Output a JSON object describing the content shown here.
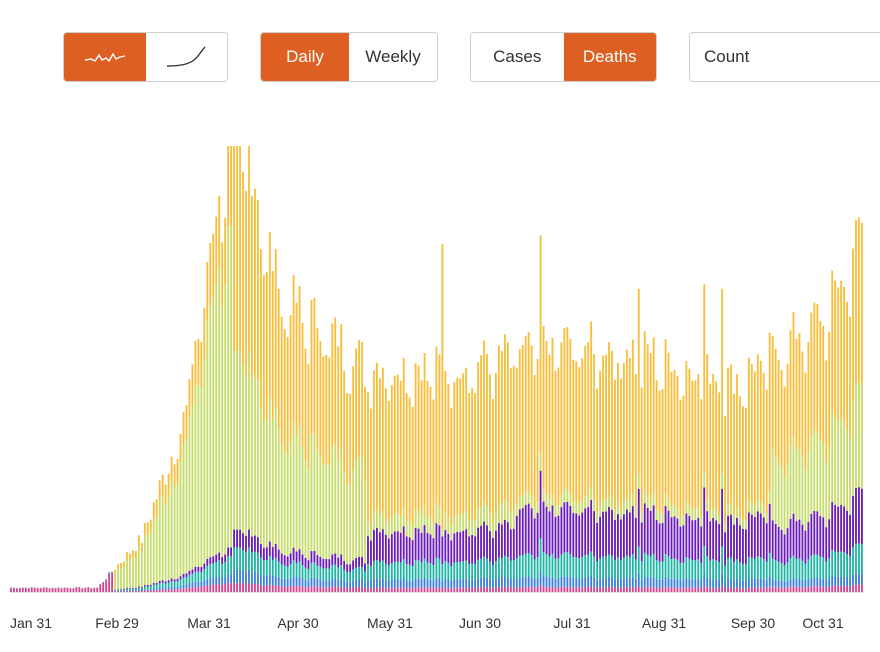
{
  "toolbar": {
    "chart_type": [
      {
        "icon": "daily-sparkline-icon",
        "active": true
      },
      {
        "icon": "cumulative-curve-icon",
        "active": false
      }
    ],
    "period": [
      {
        "label": "Daily",
        "active": true
      },
      {
        "label": "Weekly",
        "active": false
      }
    ],
    "metric": [
      {
        "label": "Cases",
        "active": false
      },
      {
        "label": "Deaths",
        "active": true
      }
    ],
    "scale_select": {
      "value": "Count"
    }
  },
  "colors": {
    "accent": "#dd6022",
    "layers": [
      "#d6448f",
      "#3a7fd8",
      "#1fb5a4",
      "#6a1bb8",
      "#c6dc6c",
      "#f7be3c"
    ]
  },
  "chart_data": {
    "type": "bar",
    "stacked": true,
    "x_range": [
      "Jan 31",
      "Nov 12"
    ],
    "x_ticks": [
      "Jan 31",
      "Feb 29",
      "Mar 31",
      "Apr 30",
      "May 31",
      "Jun 30",
      "Jul 31",
      "Aug 31",
      "Sep 30",
      "Oct 31"
    ],
    "series": [
      {
        "color": "#d6448f",
        "approx_peak_share": 0.02
      },
      {
        "color": "#3a7fd8",
        "approx_peak_share": 0.03
      },
      {
        "color": "#1fb5a4",
        "approx_peak_share": 0.08
      },
      {
        "color": "#6a1bb8",
        "approx_peak_share": 0.17
      },
      {
        "color": "#c6dc6c",
        "approx_peak_share": 0.38
      },
      {
        "color": "#f7be3c",
        "approx_peak_share": 0.32
      }
    ],
    "daily_totals_relative": {
      "note_shape": "rise from early March, peak mid-April, trough June, plateau Jul-Oct, rise late Oct",
      "key_points": [
        [
          "Jan 31",
          0.01
        ],
        [
          "Feb 29",
          0.01
        ],
        [
          "Mar 15",
          0.12
        ],
        [
          "Mar 31",
          0.42
        ],
        [
          "Apr 15",
          1.0
        ],
        [
          "Apr 30",
          0.6
        ],
        [
          "May 31",
          0.45
        ],
        [
          "Jun 30",
          0.45
        ],
        [
          "Jul 31",
          0.5
        ],
        [
          "Aug 31",
          0.48
        ],
        [
          "Sep 30",
          0.42
        ],
        [
          "Oct 31",
          0.56
        ],
        [
          "Nov 12",
          0.72
        ]
      ],
      "spikes": [
        [
          "Apr 14",
          1.0
        ],
        [
          "Jun 24",
          0.78
        ],
        [
          "Jul 27",
          0.8
        ],
        [
          "Apr 30",
          0.68
        ],
        [
          "Aug 31",
          0.68
        ],
        [
          "Sep 21",
          0.69
        ],
        [
          "Sep 26",
          0.68
        ],
        [
          "Nov 10",
          0.77
        ]
      ]
    }
  }
}
